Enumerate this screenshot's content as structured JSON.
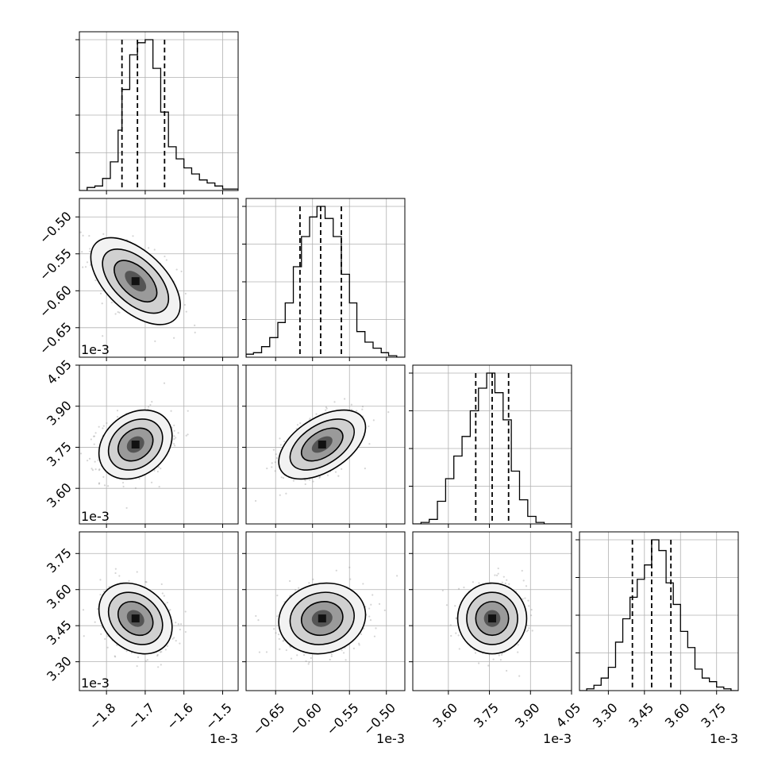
{
  "chart_data": {
    "type": "corner",
    "grid": true,
    "parameters": [
      {
        "name": "",
        "offset_label": "1e-3",
        "range": [
          -1.87,
          -1.46
        ],
        "ticks": [
          {
            "value": -1.8,
            "label": "−1.8"
          },
          {
            "value": -1.7,
            "label": "−1.7"
          },
          {
            "value": -1.6,
            "label": "−1.6"
          },
          {
            "value": -1.5,
            "label": "−1.5"
          }
        ],
        "quantiles": [
          -1.76,
          -1.72,
          -1.65
        ],
        "histogram": {
          "bin_edges": [
            -1.87,
            -1.85,
            -1.83,
            -1.81,
            -1.79,
            -1.77,
            -1.76,
            -1.74,
            -1.72,
            -1.7,
            -1.68,
            -1.66,
            -1.64,
            -1.62,
            -1.6,
            -1.58,
            -1.56,
            -1.54,
            -1.52,
            -1.5,
            -1.48,
            -1.46
          ],
          "counts": [
            0,
            2,
            3,
            8,
            19,
            40,
            67,
            90,
            98,
            100,
            81,
            52,
            29,
            21,
            15,
            11,
            7,
            5,
            3,
            1,
            1
          ]
        }
      },
      {
        "name": "",
        "offset_label": "1e-3",
        "range": [
          -0.69,
          -0.475
        ],
        "ticks": [
          {
            "value": -0.65,
            "label": "−0.65"
          },
          {
            "value": -0.6,
            "label": "−0.60"
          },
          {
            "value": -0.55,
            "label": "−0.55"
          },
          {
            "value": -0.5,
            "label": "−0.50"
          }
        ],
        "quantiles": [
          -0.617,
          -0.589,
          -0.561
        ],
        "histogram": {
          "bin_edges": [
            -0.69,
            -0.68,
            -0.669,
            -0.658,
            -0.647,
            -0.637,
            -0.626,
            -0.615,
            -0.604,
            -0.594,
            -0.583,
            -0.572,
            -0.561,
            -0.55,
            -0.54,
            -0.529,
            -0.518,
            -0.507,
            -0.497,
            -0.486,
            -0.475
          ],
          "counts": [
            2,
            3,
            7,
            13,
            23,
            36,
            60,
            80,
            93,
            100,
            92,
            80,
            55,
            36,
            17,
            10,
            6,
            3,
            1,
            0
          ]
        }
      },
      {
        "name": "",
        "offset_label": "1e-3",
        "range": [
          3.47,
          4.05
        ],
        "ticks": [
          {
            "value": 3.6,
            "label": "3.60"
          },
          {
            "value": 3.75,
            "label": "3.75"
          },
          {
            "value": 3.9,
            "label": "3.90"
          },
          {
            "value": 4.05,
            "label": "4.05"
          }
        ],
        "quantiles": [
          3.7,
          3.76,
          3.82
        ],
        "histogram": {
          "bin_edges": [
            3.47,
            3.5,
            3.53,
            3.56,
            3.59,
            3.62,
            3.65,
            3.68,
            3.71,
            3.74,
            3.77,
            3.8,
            3.83,
            3.86,
            3.89,
            3.92,
            3.95,
            3.98,
            4.01,
            4.05
          ],
          "counts": [
            0,
            1,
            3,
            15,
            30,
            45,
            58,
            75,
            90,
            100,
            87,
            69,
            35,
            16,
            5,
            1,
            0,
            0,
            0
          ]
        }
      },
      {
        "name": "",
        "offset_label": "1e-3",
        "range": [
          3.18,
          3.84
        ],
        "ticks": [
          {
            "value": 3.3,
            "label": "3.30"
          },
          {
            "value": 3.45,
            "label": "3.45"
          },
          {
            "value": 3.6,
            "label": "3.60"
          },
          {
            "value": 3.75,
            "label": "3.75"
          }
        ],
        "quantiles": [
          3.4,
          3.48,
          3.56
        ],
        "histogram": {
          "bin_edges": [
            3.18,
            3.21,
            3.24,
            3.27,
            3.3,
            3.33,
            3.36,
            3.39,
            3.42,
            3.45,
            3.48,
            3.51,
            3.54,
            3.57,
            3.6,
            3.63,
            3.66,
            3.69,
            3.72,
            3.75,
            3.78,
            3.81,
            3.84
          ],
          "counts": [
            0,
            1,
            3,
            7,
            13,
            27,
            40,
            52,
            62,
            70,
            84,
            78,
            60,
            48,
            33,
            24,
            12,
            7,
            5,
            2,
            1,
            0
          ]
        }
      }
    ],
    "pairs": [
      {
        "row": 1,
        "col": 0,
        "center": [
          -1.725,
          -0.587
        ],
        "sigma": [
          0.055,
          0.028
        ],
        "rho": -0.55
      },
      {
        "row": 2,
        "col": 0,
        "center": [
          -1.725,
          3.76
        ],
        "sigma": [
          0.045,
          0.06
        ],
        "rho": 0.25
      },
      {
        "row": 2,
        "col": 1,
        "center": [
          -0.587,
          3.76
        ],
        "sigma": [
          0.028,
          0.06
        ],
        "rho": 0.5
      },
      {
        "row": 3,
        "col": 0,
        "center": [
          -1.725,
          3.48
        ],
        "sigma": [
          0.045,
          0.07
        ],
        "rho": -0.25
      },
      {
        "row": 3,
        "col": 1,
        "center": [
          -0.587,
          3.48
        ],
        "sigma": [
          0.028,
          0.07
        ],
        "rho": 0.1
      },
      {
        "row": 3,
        "col": 2,
        "center": [
          3.76,
          3.48
        ],
        "sigma": [
          0.06,
          0.07
        ],
        "rho": 0.0
      }
    ]
  }
}
